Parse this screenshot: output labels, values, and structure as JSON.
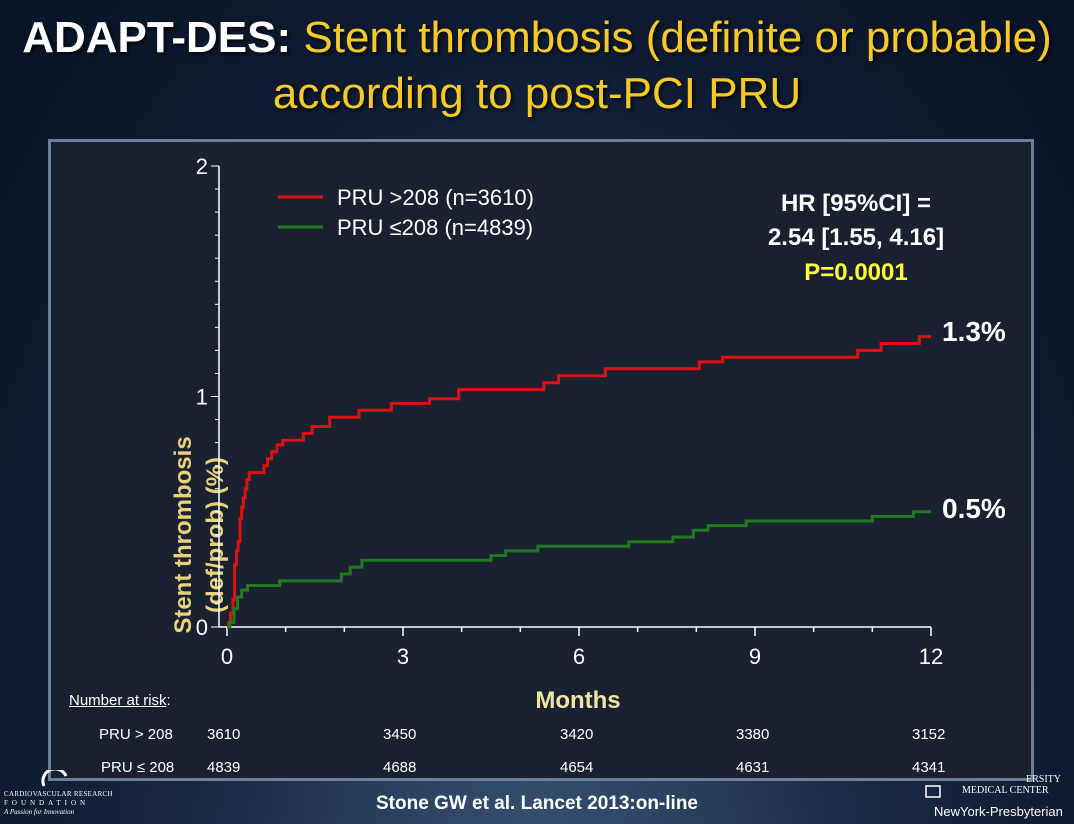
{
  "title": {
    "lead": "ADAPT-DES:",
    "rest": " Stent thrombosis (definite or probable) according to post-PCI PRU"
  },
  "hr": {
    "line1": "HR [95%CI] =",
    "line2": "2.54 [1.55, 4.16]",
    "pvalue": "P=0.0001"
  },
  "risk_table": {
    "header": "Number at risk",
    "header_suffix": ":",
    "rows": [
      {
        "label": "PRU > 208",
        "values": [
          "3610",
          "3450",
          "3420",
          "3380",
          "3152"
        ]
      },
      {
        "label": "PRU ≤ 208",
        "values": [
          "4839",
          "4688",
          "4654",
          "4631",
          "4341"
        ]
      }
    ]
  },
  "citation": "Stone GW et al. Lancet 2013:on-line",
  "logos": {
    "left_line1": "CARDIOVASCULAR RESEARCH",
    "left_line2": "FOUNDATION",
    "left_line3": "A Passion for Innovation",
    "right_line1": "ERSITY",
    "right_line2": "MEDICAL CENTER",
    "right_line3": "NewYork-Presbyterian"
  },
  "colors": {
    "title_highlight": "#f6c927",
    "ylabel": "#e9d27a",
    "xlabel": "#f2e3a3",
    "pvalue": "#ffff33",
    "series_high": "#dd1111",
    "series_low": "#1f7a1f"
  },
  "chart_data": {
    "type": "line",
    "step": true,
    "xlabel": "Months",
    "ylabel_line1": "Stent thrombosis",
    "ylabel_line2": "(def/prob) (%)",
    "xlim": [
      0,
      12
    ],
    "ylim": [
      0,
      2
    ],
    "xticks": [
      0,
      3,
      6,
      9,
      12
    ],
    "yticks": [
      0,
      1,
      2
    ],
    "legend_position": "top-left",
    "series": [
      {
        "name": "PRU >208 (n=3610)",
        "color": "#dd1111",
        "end_label": "1.3%",
        "points": [
          [
            0,
            0
          ],
          [
            0.03,
            0.02
          ],
          [
            0.06,
            0.06
          ],
          [
            0.1,
            0.12
          ],
          [
            0.13,
            0.27
          ],
          [
            0.16,
            0.33
          ],
          [
            0.19,
            0.37
          ],
          [
            0.22,
            0.47
          ],
          [
            0.25,
            0.52
          ],
          [
            0.28,
            0.56
          ],
          [
            0.31,
            0.6
          ],
          [
            0.34,
            0.64
          ],
          [
            0.38,
            0.67
          ],
          [
            0.63,
            0.7
          ],
          [
            0.69,
            0.73
          ],
          [
            0.76,
            0.76
          ],
          [
            0.85,
            0.79
          ],
          [
            0.95,
            0.81
          ],
          [
            1.3,
            0.84
          ],
          [
            1.45,
            0.87
          ],
          [
            1.75,
            0.91
          ],
          [
            2.25,
            0.94
          ],
          [
            2.8,
            0.97
          ],
          [
            3.45,
            0.99
          ],
          [
            3.95,
            1.03
          ],
          [
            5.4,
            1.06
          ],
          [
            5.65,
            1.09
          ],
          [
            6.45,
            1.12
          ],
          [
            8.05,
            1.15
          ],
          [
            8.45,
            1.17
          ],
          [
            10.75,
            1.2
          ],
          [
            11.15,
            1.23
          ],
          [
            11.8,
            1.26
          ],
          [
            12,
            1.26
          ]
        ]
      },
      {
        "name": "PRU ≤208 (n=4839)",
        "color": "#1f7a1f",
        "end_label": "0.5%",
        "points": [
          [
            0,
            0
          ],
          [
            0.05,
            0.02
          ],
          [
            0.12,
            0.08
          ],
          [
            0.18,
            0.13
          ],
          [
            0.25,
            0.16
          ],
          [
            0.35,
            0.18
          ],
          [
            0.9,
            0.2
          ],
          [
            1.95,
            0.23
          ],
          [
            2.1,
            0.26
          ],
          [
            2.3,
            0.29
          ],
          [
            4.5,
            0.31
          ],
          [
            4.75,
            0.33
          ],
          [
            5.3,
            0.35
          ],
          [
            6.85,
            0.37
          ],
          [
            7.6,
            0.39
          ],
          [
            7.95,
            0.42
          ],
          [
            8.2,
            0.44
          ],
          [
            8.85,
            0.46
          ],
          [
            11,
            0.48
          ],
          [
            11.7,
            0.5
          ],
          [
            12,
            0.5
          ]
        ]
      }
    ]
  }
}
